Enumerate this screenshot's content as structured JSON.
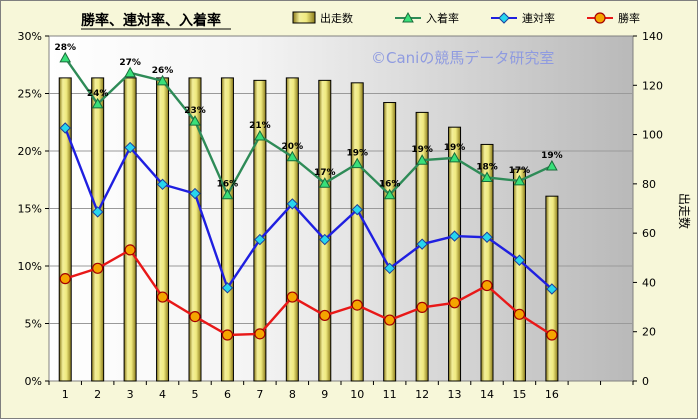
{
  "chart_data": {
    "type": "bar+line",
    "title": "勝率、連対率、入着率",
    "watermark": "©Caniの競馬データ研究室",
    "categories": [
      "1",
      "2",
      "3",
      "4",
      "5",
      "6",
      "7",
      "8",
      "9",
      "10",
      "11",
      "12",
      "13",
      "14",
      "15",
      "16"
    ],
    "bar_series": {
      "name": "出走数",
      "axis": "right",
      "color": "#f2ee8e",
      "values": [
        123,
        123,
        123,
        123,
        123,
        123,
        122,
        123,
        122,
        121,
        113,
        109,
        103,
        96,
        86,
        75
      ]
    },
    "line_series": [
      {
        "name": "入着率",
        "color": "#2e8b57",
        "marker": "triangle",
        "values": [
          28.1,
          24.1,
          26.8,
          26.1,
          22.6,
          16.2,
          21.3,
          19.5,
          17.2,
          18.9,
          16.2,
          19.2,
          19.4,
          17.7,
          17.4,
          18.7
        ],
        "labels": [
          "28%",
          "24%",
          "27%",
          "26%",
          "23%",
          "16%",
          "21%",
          "20%",
          "17%",
          "19%",
          "16%",
          "19%",
          "19%",
          "18%",
          "17%",
          "19%"
        ]
      },
      {
        "name": "連対率",
        "color": "#1f1fe0",
        "marker": "diamond",
        "values": [
          22.0,
          14.7,
          20.3,
          17.1,
          16.3,
          8.1,
          12.3,
          15.4,
          12.3,
          14.9,
          9.8,
          11.9,
          12.6,
          12.5,
          10.5,
          8.0
        ]
      },
      {
        "name": "勝率",
        "color": "#e81818",
        "marker": "circle",
        "values": [
          8.9,
          9.8,
          11.4,
          7.3,
          5.6,
          4.0,
          4.1,
          7.3,
          5.7,
          6.6,
          5.3,
          6.4,
          6.8,
          8.3,
          5.8,
          4.0
        ]
      }
    ],
    "y_left": {
      "min": 0,
      "max": 30,
      "step": 5,
      "ticks": [
        "0%",
        "5%",
        "10%",
        "15%",
        "20%",
        "25%",
        "30%"
      ]
    },
    "y_right": {
      "min": 0,
      "max": 140,
      "step": 20,
      "ticks": [
        "0",
        "20",
        "40",
        "60",
        "80",
        "100",
        "120",
        "140"
      ],
      "label": "出走数"
    },
    "grid": true,
    "legend_position": "top"
  }
}
